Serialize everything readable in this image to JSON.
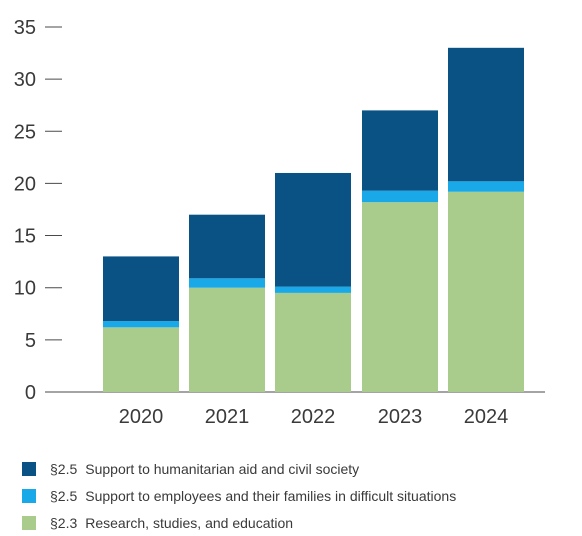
{
  "chart_data": {
    "type": "bar",
    "stacked": true,
    "categories": [
      "2020",
      "2021",
      "2022",
      "2023",
      "2024"
    ],
    "series": [
      {
        "name": "§2.3  Research, studies, and education",
        "code": "§2.3",
        "label": "Research, studies, and education",
        "color": "#a9cb8c",
        "values": [
          6.2,
          10.0,
          9.5,
          18.2,
          19.2
        ]
      },
      {
        "name": "§2.5  Support to employees and their families in difficult situations",
        "code": "§2.5",
        "label": "Support to employees and their families in difficult situations",
        "color": "#1aa9e8",
        "values": [
          0.6,
          0.9,
          0.6,
          1.1,
          1.0
        ]
      },
      {
        "name": "§2.5  Support to humanitarian aid and civil society",
        "code": "§2.5",
        "label": "Support to humanitarian aid and civil society",
        "color": "#0b5284",
        "values": [
          6.2,
          6.1,
          10.9,
          7.7,
          12.8
        ]
      }
    ],
    "yticks": [
      0,
      5,
      10,
      15,
      20,
      25,
      30,
      35
    ],
    "ylim": [
      0,
      35
    ],
    "grid": false,
    "legend_position": "bottom",
    "legend_order": [
      2,
      1,
      0
    ]
  }
}
